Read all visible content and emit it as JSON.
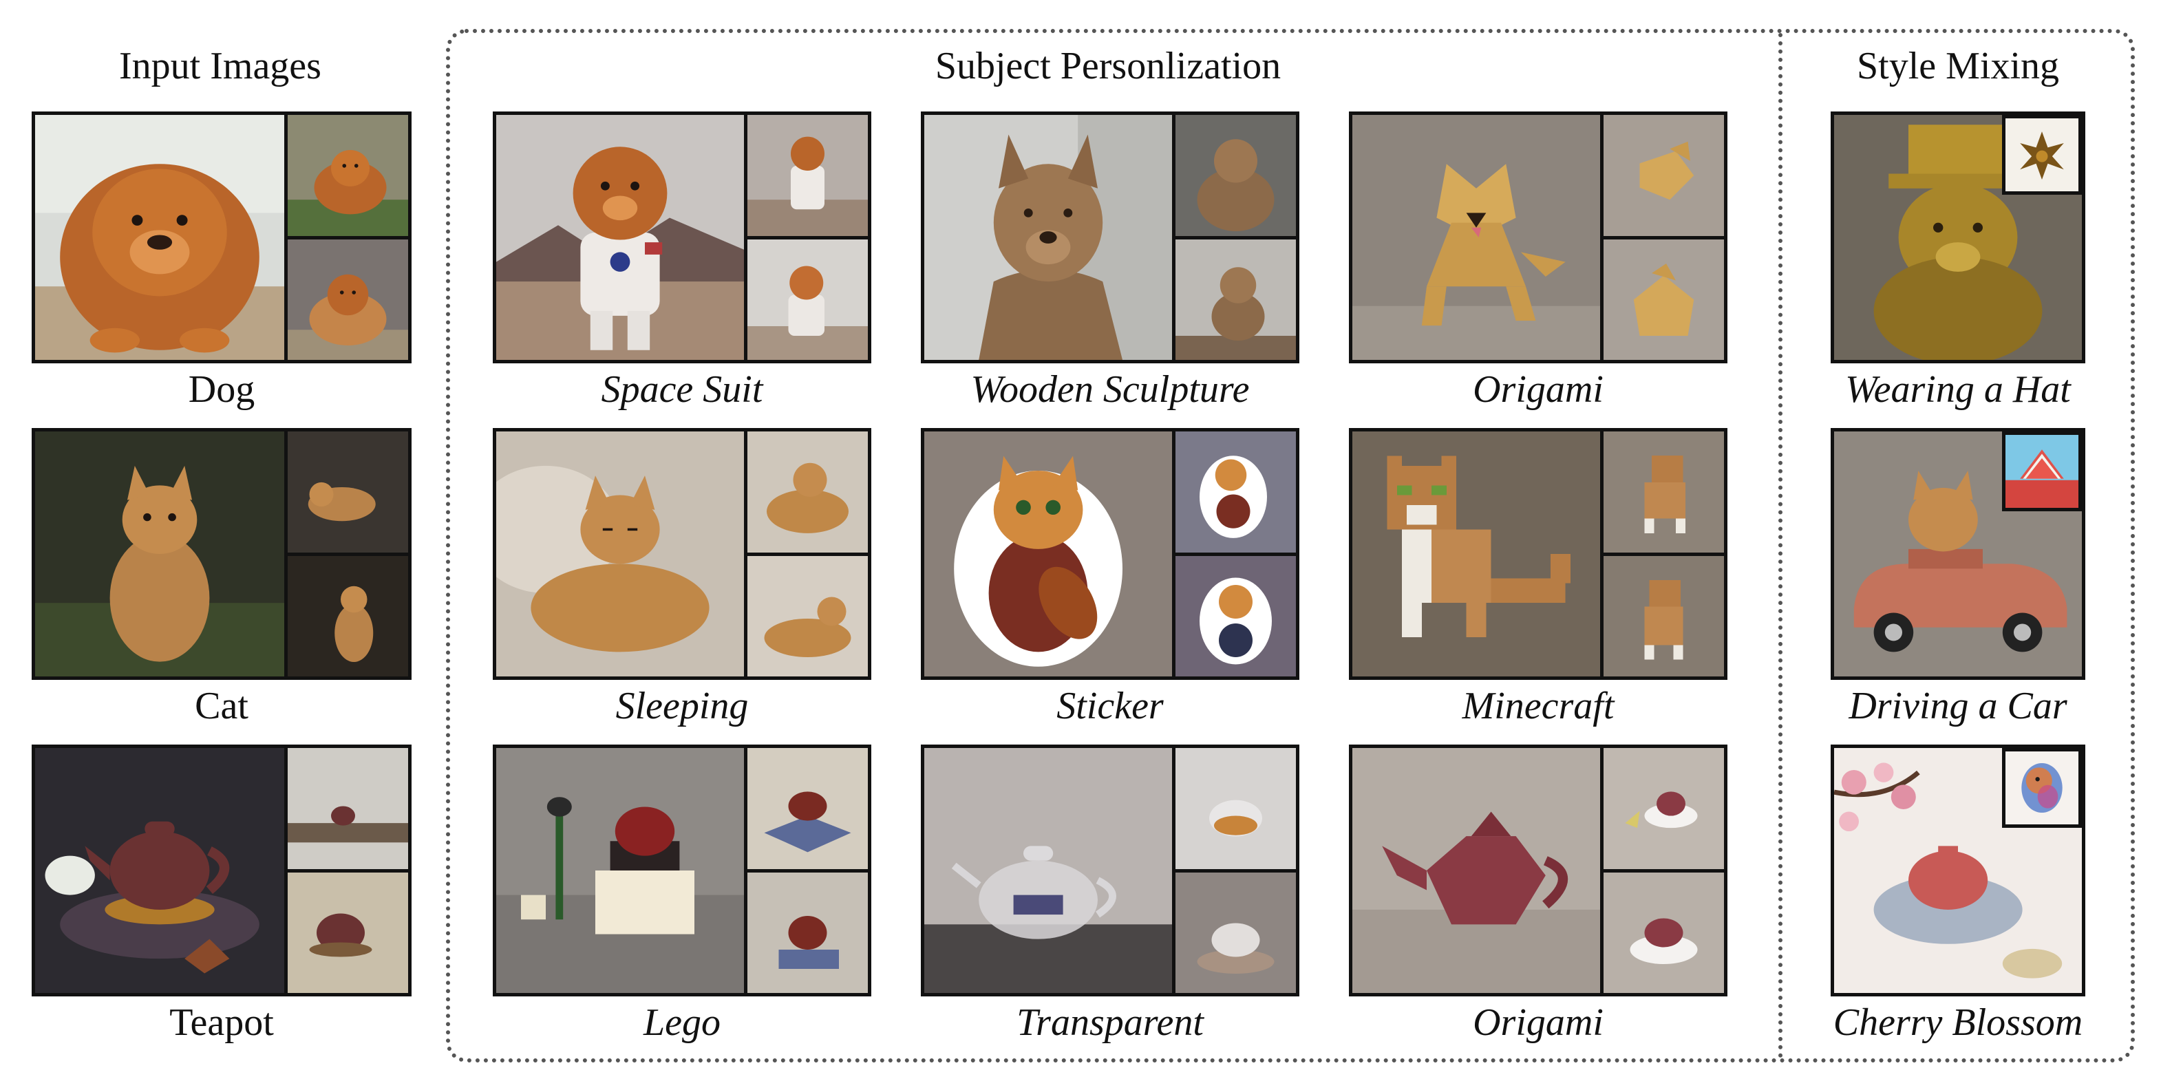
{
  "sections": {
    "input": "Input Images",
    "subject": "Subject Personlization",
    "style": "Style Mixing"
  },
  "rows": [
    {
      "input_label": "Dog",
      "personalization": [
        "Space Suit",
        "Wooden Sculpture",
        "Origami"
      ],
      "style": "Wearing a Hat"
    },
    {
      "input_label": "Cat",
      "personalization": [
        "Sleeping",
        "Sticker",
        "Minecraft"
      ],
      "style": "Driving a Car"
    },
    {
      "input_label": "Teapot",
      "personalization": [
        "Lego",
        "Transparent",
        "Origami"
      ],
      "style": "Cherry Blossom"
    }
  ],
  "colors": {
    "dog_fur": "#b9652a",
    "cat_fur": "#c58c4e",
    "teapot_clay": "#6a3232",
    "frame": "#111111",
    "divider": "#555555"
  }
}
